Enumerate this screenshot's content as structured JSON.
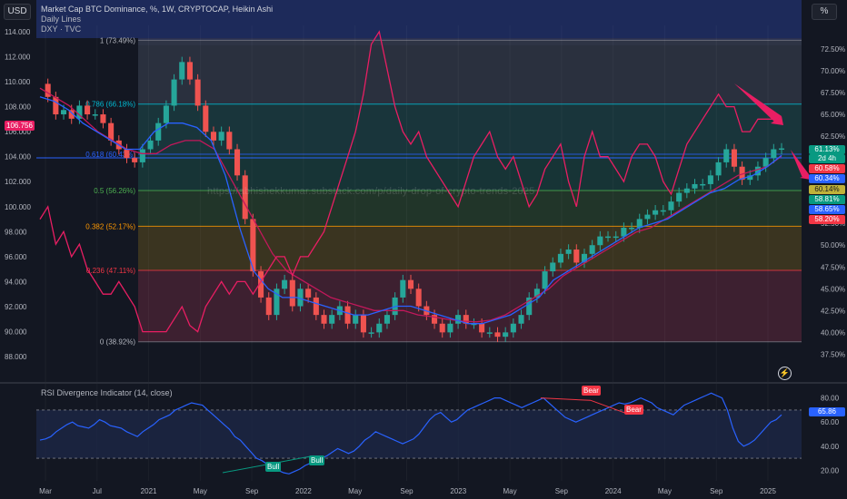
{
  "header": {
    "currency_button": "USD",
    "percent_button": "%",
    "title": "Market Cap BTC Dominance, %, 1W, CRYPTOCAP, Heikin Ashi",
    "sub1": "Daily Lines",
    "sub2": "DXY · TVC"
  },
  "watermark": "https://abhishekkumar.substack.com/p/daily-drop-of-crypto-trends-2025",
  "left_price_tag": "106.756",
  "right_price_tags": [
    {
      "text": "61.13%",
      "color": "#089981"
    },
    {
      "text": "2d 4h",
      "color": "#089981"
    },
    {
      "text": "60.58%",
      "color": "#f23645"
    },
    {
      "text": "60.34%",
      "color": "#2962ff"
    },
    {
      "text": "60.14%",
      "color": "#c0b23a"
    },
    {
      "text": "58.81%",
      "color": "#089981"
    },
    {
      "text": "58.65%",
      "color": "#2962ff"
    },
    {
      "text": "58.20%",
      "color": "#f23645"
    }
  ],
  "indicator": {
    "title": "RSI Divergence Indicator (14, close)",
    "value_tag": "65.86"
  },
  "fib_levels": [
    {
      "label": "1 (73.49%)",
      "value": 73.49,
      "fill": "#2f3543"
    },
    {
      "label": "0.786 (66.18%)",
      "value": 66.18,
      "fill": "#1b3b40"
    },
    {
      "label": "0.618 (60.43%)",
      "value": 60.43,
      "fill": "#193a3a"
    },
    {
      "label": "0.5 (56.26%)",
      "value": 56.26,
      "fill": "#253b2a"
    },
    {
      "label": "0.382 (52.17%)",
      "value": 52.17,
      "fill": "#423a20"
    },
    {
      "label": "0.236 (47.11%)",
      "value": 47.11,
      "fill": "#452232"
    },
    {
      "label": "0 (38.92%)",
      "value": 38.92,
      "fill": "#452232"
    }
  ],
  "divergence_labels": [
    {
      "text": "Bear",
      "color": "#f23645"
    },
    {
      "text": "Bear",
      "color": "#f23645"
    },
    {
      "text": "Bull",
      "color": "#089981"
    },
    {
      "text": "Bull",
      "color": "#089981"
    }
  ],
  "chart_data": {
    "type": "candlestick",
    "title": "Market Cap BTC Dominance, %, 1W, CRYPTOCAP, Heikin Ashi",
    "x_ticks": [
      "Mar",
      "Jul",
      "2021",
      "May",
      "Sep",
      "2022",
      "May",
      "Sep",
      "2023",
      "May",
      "Sep",
      "2024",
      "May",
      "Sep",
      "2025"
    ],
    "y_right_ticks": [
      "72.50%",
      "70.00%",
      "67.50%",
      "65.00%",
      "62.50%",
      "60.00%",
      "57.50%",
      "55.00%",
      "52.50%",
      "50.00%",
      "47.50%",
      "45.00%",
      "42.50%",
      "40.00%",
      "37.50%"
    ],
    "y_left_ticks": [
      "114.000",
      "112.000",
      "110.000",
      "108.000",
      "106.000",
      "104.000",
      "102.000",
      "100.000",
      "98.000",
      "96.000",
      "94.000",
      "92.000",
      "90.000",
      "88.000"
    ],
    "y_right_range": [
      36.5,
      75.2
    ],
    "y_left_range": [
      87.5,
      114.5
    ],
    "series": [
      {
        "name": "BTC Dominance",
        "color": "#26a69a",
        "values": [
          68.5,
          67,
          65,
          65.5,
          64.5,
          66,
          65,
          65,
          64,
          62,
          61,
          60,
          59.5,
          61,
          62,
          64,
          66,
          69,
          71,
          69,
          66,
          63,
          62,
          63,
          61,
          58,
          53,
          47,
          44,
          42,
          45,
          46,
          43,
          45,
          44,
          42,
          41,
          42,
          43,
          41,
          42,
          40,
          40,
          41,
          42,
          44,
          46,
          45,
          43,
          42,
          41,
          40,
          41,
          42,
          41,
          41,
          40,
          40,
          39.5,
          40,
          41,
          42,
          44,
          45,
          47,
          48,
          49,
          49.5,
          48,
          49,
          50,
          51,
          51,
          51,
          52,
          52,
          53,
          53.5,
          54,
          54,
          55,
          56,
          56.5,
          57,
          57,
          58,
          59.5,
          61,
          59,
          57.5,
          58,
          59,
          60,
          61,
          61.1
        ]
      },
      {
        "name": "DXY",
        "color": "#e91e63",
        "values": [
          99,
          100,
          97,
          98,
          96,
          97,
          95,
          94,
          93,
          93,
          94,
          93,
          92,
          90,
          90,
          90,
          90,
          91,
          92,
          90.5,
          90,
          92,
          93,
          94,
          93,
          94,
          94,
          93,
          94,
          95,
          96,
          96,
          94.5,
          96,
          96,
          97,
          98,
          100,
          102,
          104,
          106,
          109,
          113,
          114,
          111,
          108,
          106,
          105,
          106,
          104,
          103,
          102,
          101,
          100,
          102,
          104,
          105,
          106,
          104,
          103,
          104,
          102,
          100,
          101,
          103,
          104,
          105,
          102,
          100,
          104,
          106,
          104,
          104,
          103,
          102,
          104,
          105,
          105,
          104,
          102,
          101,
          103,
          105,
          106,
          107,
          108,
          109,
          108,
          108,
          106,
          106,
          107,
          107,
          107,
          106.756
        ]
      },
      {
        "name": "MA blue",
        "color": "#2962ff",
        "values": [
          67,
          66.5,
          65.5,
          64,
          63,
          62,
          61,
          61,
          63,
          64,
          64,
          63.5,
          62,
          58,
          52,
          47,
          45,
          44,
          44,
          43.5,
          43,
          42.5,
          42,
          42,
          42.5,
          43,
          43,
          42.5,
          42,
          41.5,
          41,
          41,
          41.5,
          42,
          43,
          44,
          46,
          47,
          48,
          49,
          50,
          51,
          52,
          52.5,
          53,
          54,
          55,
          56,
          56.5,
          57.5,
          58,
          59,
          60.3
        ]
      },
      {
        "name": "MA red",
        "color": "#c2185b",
        "values": [
          68,
          67,
          66,
          64.5,
          63,
          62,
          61,
          60.5,
          60.5,
          61.5,
          62,
          62,
          61,
          58,
          55,
          52,
          49,
          47,
          46,
          45,
          44,
          43.5,
          43,
          42.5,
          42.5,
          42.5,
          42,
          41.8,
          41.5,
          41.3,
          41.2,
          41.4,
          42,
          43,
          44,
          45,
          46.5,
          47.5,
          48.5,
          49.5,
          50.5,
          51.5,
          52,
          53,
          54,
          55,
          56,
          57,
          58,
          58.5,
          59,
          60.2
        ]
      }
    ]
  },
  "rsi_data": {
    "type": "line",
    "y_ticks": [
      "80.00",
      "60.00",
      "40.00",
      "20.00"
    ],
    "y_range": [
      15,
      85
    ],
    "bands": [
      70,
      30
    ],
    "values": [
      45,
      46,
      48,
      52,
      55,
      58,
      60,
      57,
      56,
      55,
      58,
      62,
      60,
      57,
      56,
      55,
      52,
      50,
      48,
      52,
      55,
      58,
      62,
      64,
      66,
      70,
      72,
      74,
      76,
      75,
      74,
      70,
      66,
      62,
      58,
      54,
      48,
      45,
      40,
      35,
      30,
      28,
      25,
      22,
      20,
      18,
      17,
      19,
      21,
      24,
      26,
      28,
      30,
      32,
      35,
      38,
      36,
      34,
      36,
      40,
      45,
      48,
      52,
      50,
      48,
      46,
      44,
      42,
      44,
      46,
      50,
      56,
      62,
      66,
      68,
      64,
      60,
      62,
      66,
      70,
      72,
      74,
      76,
      78,
      80,
      80,
      78,
      76,
      74,
      72,
      74,
      76,
      78,
      80,
      76,
      72,
      68,
      64,
      62,
      60,
      62,
      64,
      66,
      68,
      70,
      72,
      74,
      76,
      75,
      76,
      78,
      80,
      78,
      76,
      72,
      70,
      68,
      66,
      70,
      74,
      76,
      78,
      80,
      82,
      84,
      82,
      80,
      70,
      55,
      44,
      40,
      42,
      45,
      50,
      55,
      60,
      62,
      66
    ]
  }
}
